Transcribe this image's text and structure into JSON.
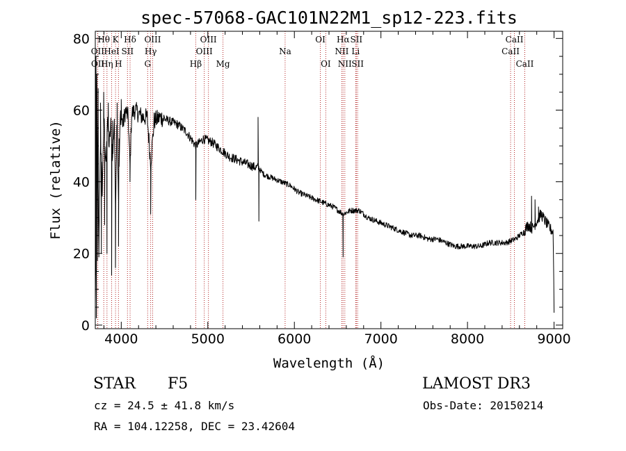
{
  "chart_data": {
    "type": "line",
    "title": "spec-57068-GAC101N22M1_sp12-223.fits",
    "xlabel": "Wavelength (Å)",
    "ylabel": "Flux (relative)",
    "xlim": [
      3700,
      9100
    ],
    "ylim": [
      -1,
      82
    ],
    "xticks": [
      4000,
      5000,
      6000,
      7000,
      8000,
      9000
    ],
    "yticks": [
      0,
      20,
      40,
      60,
      80
    ],
    "series": [
      {
        "name": "flux",
        "x": [
          3700,
          3720,
          3740,
          3760,
          3780,
          3800,
          3820,
          3840,
          3860,
          3880,
          3900,
          3920,
          3933,
          3950,
          3968,
          3990,
          4020,
          4050,
          4080,
          4101,
          4120,
          4160,
          4200,
          4250,
          4300,
          4340,
          4380,
          4450,
          4550,
          4650,
          4750,
          4861,
          4950,
          5050,
          5150,
          5250,
          5350,
          5450,
          5550,
          5580,
          5650,
          5750,
          5850,
          5950,
          6050,
          6150,
          6250,
          6350,
          6450,
          6563,
          6650,
          6750,
          6850,
          6950,
          7050,
          7150,
          7250,
          7350,
          7450,
          7550,
          7650,
          7750,
          7850,
          7950,
          8050,
          8150,
          8250,
          8350,
          8450,
          8550,
          8600,
          8650,
          8700,
          8750,
          8800,
          8850,
          8900,
          8950,
          8990,
          9000
        ],
        "y": [
          5,
          60,
          22,
          52,
          38,
          58,
          45,
          57,
          50,
          56,
          46,
          58,
          32,
          58,
          36,
          59,
          56,
          60,
          58,
          44,
          59,
          60,
          59,
          58,
          58,
          45,
          57,
          58,
          57,
          56,
          54,
          50,
          52,
          51,
          49,
          47,
          46,
          45,
          44,
          44,
          42,
          41,
          40,
          39,
          37,
          36,
          35,
          34,
          33,
          31,
          32,
          32,
          30,
          29,
          28,
          27,
          26,
          25,
          25,
          24,
          24,
          23,
          22,
          22,
          22,
          22,
          23,
          23,
          23,
          24,
          25,
          26,
          28,
          27,
          29,
          31,
          29,
          27,
          26,
          4
        ]
      }
    ],
    "spikes": [
      {
        "x": 3705,
        "y": 14
      },
      {
        "x": 3708,
        "y": 75
      },
      {
        "x": 3712,
        "y": 2
      },
      {
        "x": 3718,
        "y": 70
      },
      {
        "x": 3725,
        "y": 18
      },
      {
        "x": 3733,
        "y": 66
      },
      {
        "x": 3742,
        "y": 19
      },
      {
        "x": 3760,
        "y": 62
      },
      {
        "x": 3770,
        "y": 20
      },
      {
        "x": 3797,
        "y": 65
      },
      {
        "x": 3808,
        "y": 28
      },
      {
        "x": 3835,
        "y": 20
      },
      {
        "x": 3850,
        "y": 62
      },
      {
        "x": 3889,
        "y": 14
      },
      {
        "x": 3900,
        "y": 57
      },
      {
        "x": 3933,
        "y": 16
      },
      {
        "x": 3952,
        "y": 62
      },
      {
        "x": 3968,
        "y": 22
      },
      {
        "x": 3975,
        "y": 52
      },
      {
        "x": 4000,
        "y": 63
      },
      {
        "x": 4101,
        "y": 40
      },
      {
        "x": 4340,
        "y": 31
      },
      {
        "x": 4861,
        "y": 35
      },
      {
        "x": 5580,
        "y": 58
      },
      {
        "x": 5590,
        "y": 29
      },
      {
        "x": 6563,
        "y": 19
      },
      {
        "x": 8740,
        "y": 36
      },
      {
        "x": 8780,
        "y": 35
      },
      {
        "x": 8820,
        "y": 33
      }
    ],
    "spectral_lines": [
      {
        "label": "Hθ",
        "x": 3798,
        "row": 0
      },
      {
        "label": "K",
        "x": 3934,
        "row": 0
      },
      {
        "label": "Hδ",
        "x": 4102,
        "row": 0
      },
      {
        "label": "OIII",
        "x": 4363,
        "row": 0
      },
      {
        "label": "OIII",
        "x": 5007,
        "row": 0
      },
      {
        "label": "OI",
        "x": 6300,
        "row": 0
      },
      {
        "label": "Hα",
        "x": 6563,
        "row": 0
      },
      {
        "label": "SII",
        "x": 6716,
        "row": 0
      },
      {
        "label": "CaII",
        "x": 8542,
        "row": 0
      },
      {
        "label": "OII",
        "x": 3727,
        "row": 1
      },
      {
        "label": "HeI",
        "x": 3889,
        "row": 1
      },
      {
        "label": "SII",
        "x": 4072,
        "row": 1
      },
      {
        "label": "Hγ",
        "x": 4340,
        "row": 1
      },
      {
        "label": "OIII",
        "x": 4959,
        "row": 1
      },
      {
        "label": "Na",
        "x": 5893,
        "row": 1
      },
      {
        "label": "NII",
        "x": 6548,
        "row": 1
      },
      {
        "label": "Li",
        "x": 6708,
        "row": 1
      },
      {
        "label": "CaII",
        "x": 8498,
        "row": 1
      },
      {
        "label": "OII",
        "x": 3729,
        "row": 2
      },
      {
        "label": "Hη",
        "x": 3835,
        "row": 2
      },
      {
        "label": "H",
        "x": 3968,
        "row": 2
      },
      {
        "label": "G",
        "x": 4305,
        "row": 2
      },
      {
        "label": "Hβ",
        "x": 4861,
        "row": 2
      },
      {
        "label": "Mg",
        "x": 5175,
        "row": 2
      },
      {
        "label": "OI",
        "x": 6363,
        "row": 2
      },
      {
        "label": "NII",
        "x": 6583,
        "row": 2
      },
      {
        "label": "SII",
        "x": 6731,
        "row": 2
      },
      {
        "label": "CaII",
        "x": 8662,
        "row": 2
      }
    ],
    "line_color": "#000000",
    "marker_color": "#b22222"
  },
  "info": {
    "object_class": "STAR",
    "subclass": "F5",
    "survey": "LAMOST DR3",
    "velocity": "cz = 24.5 ± 41.8 km/s",
    "obs_date": "Obs-Date: 20150214",
    "coords": "RA = 104.12258, DEC =  23.42604"
  }
}
